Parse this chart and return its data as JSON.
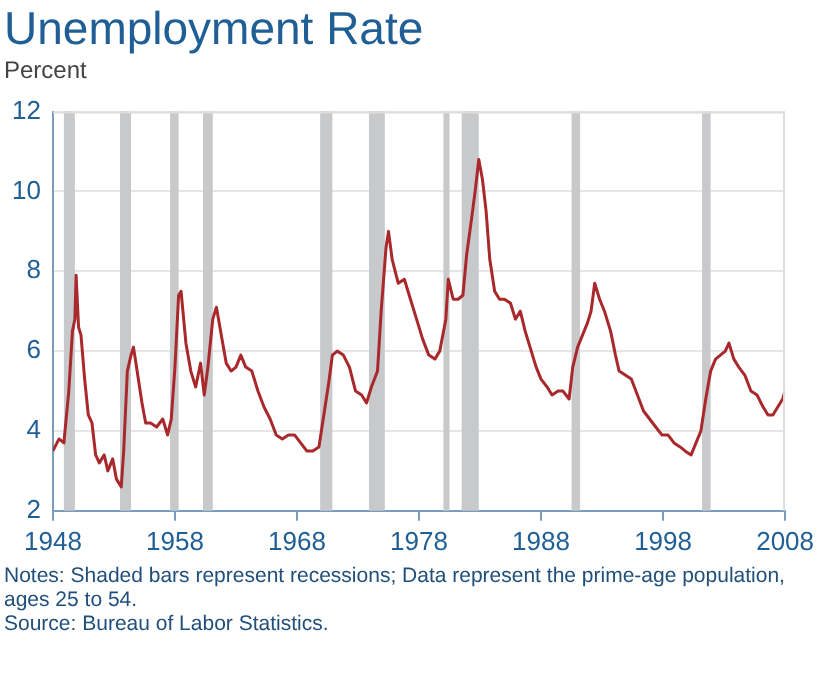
{
  "chart_data": {
    "type": "line",
    "title": "Unemployment Rate",
    "ylabel": "Percent",
    "annotations": [
      "Notes: Shaded bars represent recessions; Data represent the prime-age population, ages 25 to 54.",
      "Source: Bureau of Labor Statistics."
    ],
    "xlim": [
      1948,
      2008
    ],
    "xticks": [
      1948,
      1958,
      1968,
      1978,
      1988,
      1998,
      2008
    ],
    "ylim": [
      2,
      12
    ],
    "yticks": [
      2,
      4,
      6,
      8,
      10,
      12
    ],
    "grid": "y",
    "bands": [
      {
        "axis": "x",
        "from": 1948.9,
        "to": 1949.8,
        "color": "#c8c9cb"
      },
      {
        "axis": "x",
        "from": 1953.5,
        "to": 1954.4,
        "color": "#c8c9cb"
      },
      {
        "axis": "x",
        "from": 1957.6,
        "to": 1958.3,
        "color": "#c8c9cb"
      },
      {
        "axis": "x",
        "from": 1960.3,
        "to": 1961.1,
        "color": "#c8c9cb"
      },
      {
        "axis": "x",
        "from": 1969.9,
        "to": 1970.9,
        "color": "#c8c9cb"
      },
      {
        "axis": "x",
        "from": 1973.9,
        "to": 1975.2,
        "color": "#c8c9cb"
      },
      {
        "axis": "x",
        "from": 1980.0,
        "to": 1980.5,
        "color": "#c8c9cb"
      },
      {
        "axis": "x",
        "from": 1981.5,
        "to": 1982.9,
        "color": "#c8c9cb"
      },
      {
        "axis": "x",
        "from": 1990.5,
        "to": 1991.2,
        "color": "#c8c9cb"
      },
      {
        "axis": "x",
        "from": 2001.2,
        "to": 2001.9,
        "color": "#c8c9cb"
      }
    ],
    "x": [
      1948.0,
      1948.5,
      1948.9,
      1949.3,
      1949.6,
      1949.8,
      1949.9,
      1950.1,
      1950.3,
      1950.6,
      1950.9,
      1951.2,
      1951.5,
      1951.8,
      1952.2,
      1952.5,
      1952.9,
      1953.2,
      1953.6,
      1953.8,
      1954.1,
      1954.4,
      1954.6,
      1954.9,
      1955.3,
      1955.6,
      1956.0,
      1956.5,
      1957.0,
      1957.4,
      1957.7,
      1958.0,
      1958.3,
      1958.5,
      1958.9,
      1959.3,
      1959.7,
      1960.1,
      1960.4,
      1960.7,
      1961.1,
      1961.4,
      1961.8,
      1962.2,
      1962.6,
      1963.0,
      1963.4,
      1963.8,
      1964.3,
      1964.8,
      1965.3,
      1965.8,
      1966.3,
      1966.8,
      1967.3,
      1967.8,
      1968.3,
      1968.8,
      1969.3,
      1969.8,
      1970.2,
      1970.6,
      1970.9,
      1971.3,
      1971.8,
      1972.3,
      1972.8,
      1973.3,
      1973.7,
      1974.1,
      1974.6,
      1974.9,
      1975.3,
      1975.5,
      1975.8,
      1976.3,
      1976.8,
      1977.3,
      1977.8,
      1978.3,
      1978.8,
      1979.3,
      1979.7,
      1980.2,
      1980.4,
      1980.8,
      1981.2,
      1981.6,
      1981.9,
      1982.3,
      1982.6,
      1982.9,
      1983.2,
      1983.5,
      1983.8,
      1984.2,
      1984.6,
      1985.0,
      1985.5,
      1985.9,
      1986.3,
      1986.7,
      1987.2,
      1987.6,
      1988.0,
      1988.5,
      1988.9,
      1989.4,
      1989.8,
      1990.3,
      1990.6,
      1991.0,
      1991.4,
      1991.8,
      1992.1,
      1992.4,
      1992.8,
      1993.2,
      1993.7,
      1994.1,
      1994.4,
      1994.9,
      1995.4,
      1995.9,
      1996.4,
      1996.9,
      1997.4,
      1997.9,
      1998.4,
      1998.9,
      1999.4,
      1999.8,
      2000.3,
      2000.7,
      2001.1,
      2001.5,
      2001.9,
      2002.3,
      2002.7,
      2003.1,
      2003.4,
      2003.8,
      2004.2,
      2004.7,
      2005.2,
      2005.7,
      2006.2,
      2006.6,
      2007.0,
      2007.4,
      2007.8,
      2008.0
    ],
    "series": [
      {
        "color": "#a8282b",
        "values": [
          3.5,
          3.8,
          3.7,
          5.0,
          6.5,
          6.8,
          7.9,
          6.6,
          6.4,
          5.3,
          4.4,
          4.2,
          3.4,
          3.2,
          3.4,
          3.0,
          3.3,
          2.8,
          2.6,
          3.5,
          5.5,
          5.9,
          6.1,
          5.5,
          4.7,
          4.2,
          4.2,
          4.1,
          4.3,
          3.9,
          4.3,
          5.6,
          7.4,
          7.5,
          6.2,
          5.5,
          5.1,
          5.7,
          4.9,
          5.6,
          6.8,
          7.1,
          6.4,
          5.7,
          5.5,
          5.6,
          5.9,
          5.6,
          5.5,
          5.0,
          4.6,
          4.3,
          3.9,
          3.8,
          3.9,
          3.9,
          3.7,
          3.5,
          3.5,
          3.6,
          4.4,
          5.2,
          5.9,
          6.0,
          5.9,
          5.6,
          5.0,
          4.9,
          4.7,
          5.1,
          5.5,
          7.0,
          8.6,
          9.0,
          8.3,
          7.7,
          7.8,
          7.3,
          6.8,
          6.3,
          5.9,
          5.8,
          6.0,
          6.8,
          7.8,
          7.3,
          7.3,
          7.4,
          8.4,
          9.3,
          10.0,
          10.8,
          10.3,
          9.5,
          8.3,
          7.5,
          7.3,
          7.3,
          7.2,
          6.8,
          7.0,
          6.5,
          6.0,
          5.6,
          5.3,
          5.1,
          4.9,
          5.0,
          5.0,
          4.8,
          5.6,
          6.1,
          6.4,
          6.7,
          7.0,
          7.7,
          7.3,
          7.0,
          6.5,
          5.9,
          5.5,
          5.4,
          5.3,
          4.9,
          4.5,
          4.3,
          4.1,
          3.9,
          3.9,
          3.7,
          3.6,
          3.5,
          3.4,
          3.7,
          4.0,
          4.8,
          5.5,
          5.8,
          5.9,
          6.0,
          6.2,
          5.8,
          5.6,
          5.4,
          5.0,
          4.9,
          4.6,
          4.4,
          4.4,
          4.6,
          4.8,
          5.0
        ]
      }
    ]
  }
}
